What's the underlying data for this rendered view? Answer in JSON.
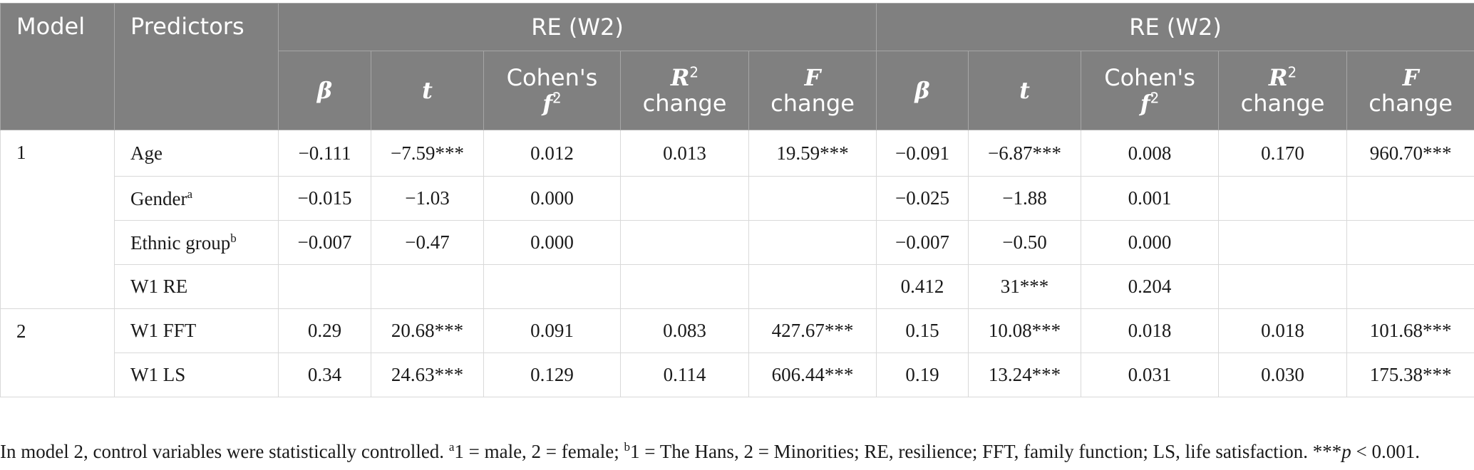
{
  "table": {
    "headers": {
      "model": "Model",
      "predictors": "Predictors",
      "group1": "RE (W2)",
      "group2": "RE (W2)",
      "beta": "β",
      "t": "t",
      "cohens_line1": "Cohen's",
      "cohens_f": "f",
      "cohens_sup": "2",
      "r_letter": "R",
      "r_sup": "2",
      "change": "change",
      "f_letter": "F"
    },
    "rows": [
      {
        "model": "1",
        "predictor": "Age",
        "sup": "",
        "cells": [
          "−0.111",
          "−7.59***",
          "0.012",
          "0.013",
          "19.59***",
          "−0.091",
          "−6.87***",
          "0.008",
          "0.170",
          "960.70***"
        ]
      },
      {
        "model": "",
        "predictor": "Gender",
        "sup": "a",
        "cells": [
          "−0.015",
          "−1.03",
          "0.000",
          "",
          "",
          "−0.025",
          "−1.88",
          "0.001",
          "",
          ""
        ]
      },
      {
        "model": "",
        "predictor": "Ethnic group",
        "sup": "b",
        "cells": [
          "−0.007",
          "−0.47",
          "0.000",
          "",
          "",
          "−0.007",
          "−0.50",
          "0.000",
          "",
          ""
        ]
      },
      {
        "model": "",
        "predictor": "W1 RE",
        "sup": "",
        "cells": [
          "",
          "",
          "",
          "",
          "",
          "0.412",
          "31***",
          "0.204",
          "",
          ""
        ]
      },
      {
        "model": "2",
        "predictor": "W1 FFT",
        "sup": "",
        "cells": [
          "0.29",
          "20.68***",
          "0.091",
          "0.083",
          "427.67***",
          "0.15",
          "10.08***",
          "0.018",
          "0.018",
          "101.68***"
        ]
      },
      {
        "model": "",
        "predictor": "W1 LS",
        "sup": "",
        "cells": [
          "0.34",
          "24.63***",
          "0.129",
          "0.114",
          "606.44***",
          "0.19",
          "13.24***",
          "0.031",
          "0.030",
          "175.38***"
        ]
      }
    ]
  },
  "note": {
    "part1": "In model 2, control variables were statistically controlled. ",
    "sup_a": "a",
    "part2": "1 = male, 2 = female; ",
    "sup_b": "b",
    "part3": "1 = The Hans, 2 = Minorities; RE, resilience; FFT, family function; LS, life satisfaction. ***",
    "p": "p",
    "part4": " < 0.001."
  }
}
